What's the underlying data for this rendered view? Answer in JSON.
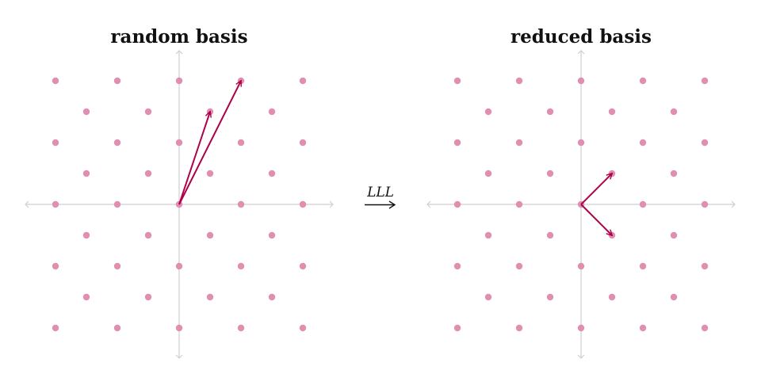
{
  "panels": [
    {
      "id": "left",
      "title": "random basis",
      "basis_vectors": [
        [
          1,
          3
        ],
        [
          2,
          4
        ]
      ]
    },
    {
      "id": "right",
      "title": "reduced basis",
      "basis_vectors": [
        [
          1,
          1
        ],
        [
          1,
          -1
        ]
      ]
    }
  ],
  "operation": {
    "label": "LLL"
  },
  "lattice": {
    "points_even_sum_in_range": [
      -2,
      2
    ],
    "point_color": "#e08fb0",
    "vector_color": "#b0004a",
    "axis_color": "#cfcfcf"
  }
}
